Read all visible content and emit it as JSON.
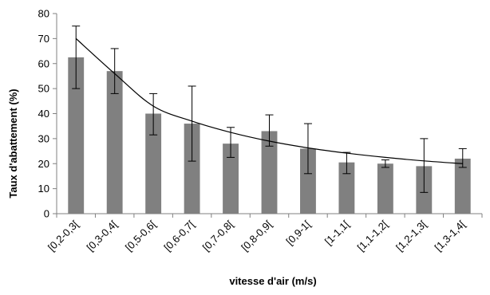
{
  "chart_data": {
    "type": "bar",
    "title": "",
    "xlabel": "vitesse d'air (m/s)",
    "ylabel": "Taux d'abattement (%)",
    "ylim": [
      0,
      80
    ],
    "yticks": [
      0,
      10,
      20,
      30,
      40,
      50,
      60,
      70,
      80
    ],
    "grid": false,
    "legend": "none",
    "categories": [
      "[0,2-0,3[",
      "[0,3-0,4[",
      "[0,5-0,6[",
      "[0,6-0,7[",
      "[0,7-0,8[",
      "[0,8-0,9[",
      "[0,9-1[",
      "[1-1,1[",
      "[1,1-1,2[",
      "[1,2-1,3[",
      "[1,3-1,4["
    ],
    "values": [
      62.5,
      57,
      40,
      36,
      28,
      33,
      26,
      20.5,
      20,
      19,
      22
    ],
    "error_low": [
      50,
      48,
      31.5,
      21,
      22.5,
      27,
      16,
      16,
      18.5,
      8.5,
      18.5
    ],
    "error_high": [
      75,
      66,
      48,
      51,
      34.5,
      39.5,
      36,
      24.5,
      21.5,
      30,
      26
    ],
    "trendline": {
      "type": "power",
      "values": [
        70,
        56,
        43,
        37,
        32.5,
        29,
        26.3,
        24.2,
        22.5,
        21.1,
        20
      ]
    },
    "bar_color": "#808080",
    "axis_color": "#808080",
    "line_color": "#000000"
  }
}
